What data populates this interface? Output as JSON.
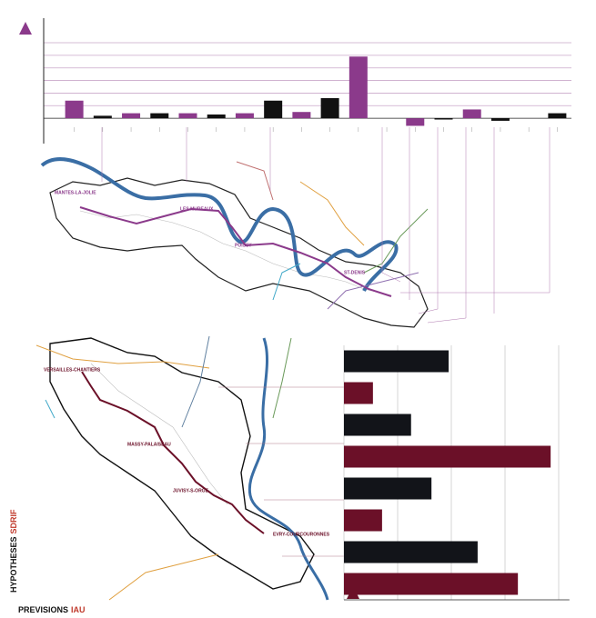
{
  "chart_data": [
    {
      "type": "bar",
      "categories": [
        null,
        null,
        null,
        null,
        null,
        null,
        null,
        null,
        null,
        null,
        null,
        null,
        null,
        null,
        null,
        null,
        null,
        null
      ],
      "values": [
        14,
        2,
        4,
        4,
        4,
        3,
        4,
        14,
        5,
        16,
        49,
        0,
        -6,
        -1,
        7,
        -2,
        0,
        4
      ],
      "colors": [
        "#8b3a8b",
        "#111111",
        "#8b3a8b",
        "#111111",
        "#8b3a8b",
        "#111111",
        "#8b3a8b",
        "#111111",
        "#8b3a8b",
        "#111111",
        "#8b3a8b",
        "#111111",
        "#8b3a8b",
        "#111111",
        "#8b3a8b",
        "#111111",
        "#8b3a8b",
        "#111111"
      ],
      "ylim": [
        -10,
        60
      ],
      "yticks": [
        0,
        10,
        20,
        30,
        40,
        50,
        60
      ],
      "grid": true
    },
    {
      "type": "barh",
      "categories": [
        null,
        null,
        null,
        null,
        null,
        null,
        null,
        null
      ],
      "values": [
        1.95,
        0.54,
        1.25,
        3.85,
        1.63,
        0.71,
        2.49,
        3.24
      ],
      "colors": [
        "#121419",
        "#6b1028",
        "#121419",
        "#6b1028",
        "#121419",
        "#6b1028",
        "#121419",
        "#6b1028"
      ],
      "xlim": [
        0,
        4.2
      ],
      "xticks": [
        0,
        1,
        2,
        3,
        4
      ],
      "grid": true
    }
  ],
  "map_labels": {
    "top": [
      "MANTES-LA-JOLIE",
      "LES MUREAUX",
      "POISSY",
      "ST-DENIS"
    ],
    "bottom": [
      "VERSAILLES-CHANTIERS",
      "MASSY-PALAISEAU",
      "JUVISY-S-ORGE",
      "EVRY-COURCOURONNES"
    ]
  },
  "footer": {
    "hypotheses": "HYPOTHESES",
    "sdrif": "SDRIF",
    "previsions": "PREVISIONS",
    "iau": "IAU"
  }
}
